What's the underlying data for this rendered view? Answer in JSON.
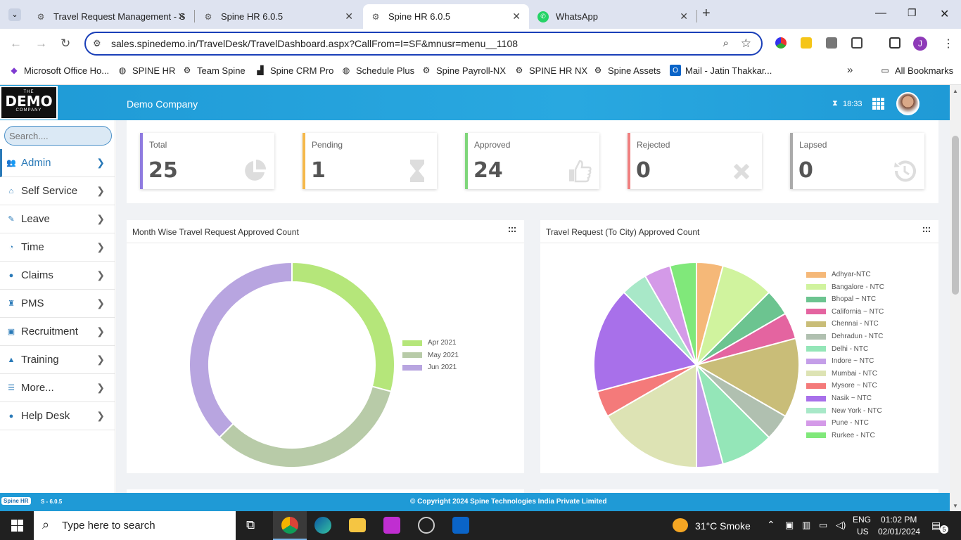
{
  "browser": {
    "tabs": [
      {
        "title": "Travel Request Management - S",
        "icon": "page-icon"
      },
      {
        "title": "Spine HR 6.0.5",
        "icon": "page-icon"
      },
      {
        "title": "Spine HR 6.0.5",
        "icon": "page-icon"
      },
      {
        "title": "WhatsApp",
        "icon": "whatsapp-icon"
      }
    ],
    "url": "sales.spinedemo.in/TravelDesk/TravelDashboard.aspx?CallFrom=I=SF&mnusr=menu__1108",
    "profile_initial": "J",
    "bookmarks": [
      "Microsoft Office Ho...",
      "SPINE HR",
      "Team Spine",
      "Spine CRM Pro",
      "Schedule Plus",
      "Spine Payroll-NX",
      "SPINE HR NX",
      "Spine Assets",
      "Mail - Jatin Thakkar..."
    ],
    "all_bookmarks": "All Bookmarks"
  },
  "header": {
    "logo": {
      "line1": "THE",
      "line2": "DEMO",
      "line3": "COMPANY"
    },
    "company": "Demo Company",
    "session_time": "18:33"
  },
  "sidebar": {
    "search_placeholder": "Search....",
    "items": [
      {
        "label": "Admin",
        "icon": "users-icon",
        "active": true
      },
      {
        "label": "Self Service",
        "icon": "home-icon"
      },
      {
        "label": "Leave",
        "icon": "edit-icon"
      },
      {
        "label": "Time",
        "icon": "user-clock-icon"
      },
      {
        "label": "Claims",
        "icon": "info-icon"
      },
      {
        "label": "PMS",
        "icon": "trophy-icon"
      },
      {
        "label": "Recruitment",
        "icon": "recruit-icon"
      },
      {
        "label": "Training",
        "icon": "graduation-icon"
      },
      {
        "label": "More...",
        "icon": "list-icon"
      },
      {
        "label": "Help Desk",
        "icon": "info-icon"
      }
    ]
  },
  "stats": [
    {
      "label": "Total",
      "value": "25",
      "color": "#8f7be0",
      "icon": "pie-icon"
    },
    {
      "label": "Pending",
      "value": "1",
      "color": "#f5b84a",
      "icon": "hourglass-icon"
    },
    {
      "label": "Approved",
      "value": "24",
      "color": "#7fd67a",
      "icon": "thumbs-up-icon"
    },
    {
      "label": "Rejected",
      "value": "0",
      "color": "#f08080",
      "icon": "x-icon"
    },
    {
      "label": "Lapsed",
      "value": "0",
      "color": "#aaaaaa",
      "icon": "history-icon"
    }
  ],
  "chart_data": [
    {
      "type": "pie",
      "title": "Month Wise Travel Request Approved Count",
      "donut": true,
      "legend_position": "right",
      "categories": [
        "Apr 2021",
        "May 2021",
        "Jun 2021"
      ],
      "values": [
        7,
        8,
        9
      ],
      "colors": [
        "#b5e67a",
        "#b8cba8",
        "#b8a5e0"
      ]
    },
    {
      "type": "pie",
      "title": "Travel Request (To City) Approved Count",
      "donut": false,
      "legend_position": "right",
      "categories": [
        "Adhyar-NTC",
        "Bangalore - NTC",
        "Bhopal ~ NTC",
        "California ~ NTC",
        "Chennai - NTC",
        "Dehradun - NTC",
        "Delhi - NTC",
        "Indore ~ NTC",
        "Mumbai - NTC",
        "Mysore ~ NTC",
        "Nasik ~ NTC",
        "New York - NTC",
        "Pune - NTC",
        "Rurkee - NTC"
      ],
      "values": [
        1,
        2,
        1,
        1,
        3,
        1,
        2,
        1,
        4,
        1,
        4,
        1,
        1,
        1
      ],
      "colors": [
        "#f5b878",
        "#d0f39e",
        "#6cc490",
        "#e464a0",
        "#c9bd78",
        "#b0c0b0",
        "#94e6b8",
        "#c49ee8",
        "#dde3b4",
        "#f47a7a",
        "#a870ea",
        "#a8e8c8",
        "#d49ae8",
        "#80e87a"
      ]
    }
  ],
  "footer": {
    "logo_text": "Spine HR",
    "version": "S - 6.0.5",
    "copyright": "© Copyright 2024 Spine Technologies India Private Limited"
  },
  "taskbar": {
    "search_placeholder": "Type here to search",
    "weather": "31°C  Smoke",
    "lang1": "ENG",
    "lang2": "US",
    "time": "01:02 PM",
    "date": "02/01/2024",
    "notifications": "5"
  }
}
